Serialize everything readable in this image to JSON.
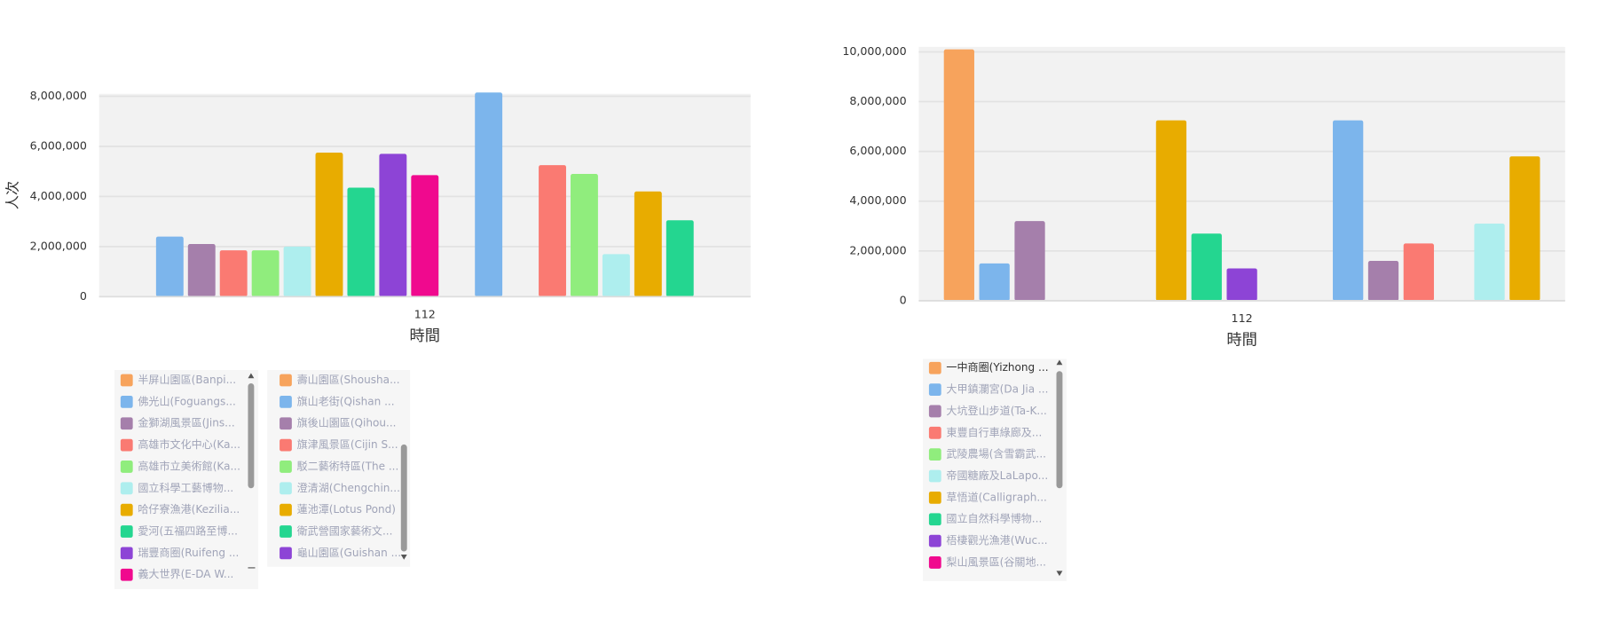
{
  "chart_data": [
    {
      "type": "bar",
      "categories": [
        "112"
      ],
      "x_label": "時間",
      "y_label": "人次",
      "grid": true,
      "ylim": [
        0,
        8100000
      ],
      "yticks": [
        0,
        {
          "value": 2000000,
          "label": "2,000,000"
        },
        {
          "value": 4000000,
          "label": "4,000,000"
        },
        {
          "value": 6000000,
          "label": "6,000,000"
        },
        {
          "value": 8000000,
          "label": "8,000,000"
        }
      ],
      "series": [
        {
          "name": "半屏山園區(Banpi...",
          "color": "#f7a35c",
          "values": [
            0
          ]
        },
        {
          "name": "佛光山(Foguangs...",
          "color": "#7cb5ec",
          "values": [
            2400000
          ]
        },
        {
          "name": "金獅湖風景區(Jins...",
          "color": "#a57fab",
          "values": [
            2100000
          ]
        },
        {
          "name": "高雄市文化中心(Ka...",
          "color": "#fa7a72",
          "values": [
            1850000
          ]
        },
        {
          "name": "高雄市立美術館(Ka...",
          "color": "#90ed7d",
          "values": [
            1850000
          ]
        },
        {
          "name": "國立科學工藝博物...",
          "color": "#aeeeee",
          "values": [
            2000000
          ]
        },
        {
          "name": "哈仔寮漁港(Kezilia...",
          "color": "#e8ac00",
          "values": [
            5750000
          ]
        },
        {
          "name": "愛河(五福四路至博...",
          "color": "#24d690",
          "values": [
            4350000
          ]
        },
        {
          "name": "瑞豐商圈(Ruifeng ...",
          "color": "#8d44d6",
          "values": [
            5700000
          ]
        },
        {
          "name": "義大世界(E-DA W...",
          "color": "#f0098e",
          "values": [
            4850000
          ]
        },
        {
          "name": "壽山園區(Shousha...",
          "color": "#f7a35c",
          "values": [
            0
          ]
        },
        {
          "name": "旗山老街(Qishan ...",
          "color": "#7cb5ec",
          "values": [
            8150000
          ]
        },
        {
          "name": "旗後山園區(Qihou...",
          "color": "#a57fab",
          "values": [
            0
          ]
        },
        {
          "name": "旗津風景區(Cijin S...",
          "color": "#fa7a72",
          "values": [
            5250000
          ]
        },
        {
          "name": "駁二藝術特區(The ...",
          "color": "#90ed7d",
          "values": [
            4900000
          ]
        },
        {
          "name": "澄清湖(Chengchin...",
          "color": "#aeeeee",
          "values": [
            1700000
          ]
        },
        {
          "name": "蓮池潭(Lotus Pond)",
          "color": "#e8ac00",
          "values": [
            4200000
          ]
        },
        {
          "name": "衛武營國家藝術文...",
          "color": "#24d690",
          "values": [
            3050000
          ]
        },
        {
          "name": "龜山園區(Guishan ...",
          "color": "#8d44d6",
          "values": [
            0
          ]
        }
      ]
    },
    {
      "type": "bar",
      "categories": [
        "112"
      ],
      "x_label": "時間",
      "grid": true,
      "ylim": [
        0,
        10200000
      ],
      "yticks": [
        0,
        {
          "value": 2000000,
          "label": "2,000,000"
        },
        {
          "value": 4000000,
          "label": "4,000,000"
        },
        {
          "value": 6000000,
          "label": "6,000,000"
        },
        {
          "value": 8000000,
          "label": "8,000,000"
        },
        {
          "value": 10000000,
          "label": "10,000,000"
        }
      ],
      "series": [
        {
          "name": "一中商圈(Yizhong ...",
          "color": "#f7a35c",
          "values": [
            10100000
          ]
        },
        {
          "name": "大甲鎮瀾宮(Da Jia ...",
          "color": "#7cb5ec",
          "values": [
            1500000
          ]
        },
        {
          "name": "大坑登山步道(Ta-K...",
          "color": "#a57fab",
          "values": [
            3200000
          ]
        },
        {
          "name": "東豐自行車綠廊及...",
          "color": "#fa7a72",
          "values": [
            30000
          ]
        },
        {
          "name": "武陵農場(含雪霸武...",
          "color": "#90ed7d",
          "values": [
            30000
          ]
        },
        {
          "name": "帝國糖廠及LaLapo...",
          "color": "#aeeeee",
          "values": [
            30000
          ]
        },
        {
          "name": "草悟道(Calligraph...",
          "color": "#e8ac00",
          "values": [
            7250000
          ]
        },
        {
          "name": "國立自然科學博物...",
          "color": "#24d690",
          "values": [
            2700000
          ]
        },
        {
          "name": "梧棲觀光漁港(Wuc...",
          "color": "#8d44d6",
          "values": [
            1300000
          ]
        },
        {
          "name": "梨山風景區(谷關地...",
          "color": "#f0098e",
          "values": [
            30000
          ]
        },
        {
          "color": "#f7a35c",
          "values": [
            30000
          ]
        },
        {
          "color": "#7cb5ec",
          "values": [
            7250000
          ]
        },
        {
          "color": "#a57fab",
          "values": [
            1600000
          ]
        },
        {
          "color": "#fa7a72",
          "values": [
            2300000
          ]
        },
        {
          "color": "#90ed7d",
          "values": [
            30000
          ]
        },
        {
          "color": "#aeeeee",
          "values": [
            3100000
          ]
        },
        {
          "color": "#e8ac00",
          "values": [
            5800000
          ]
        }
      ]
    }
  ]
}
